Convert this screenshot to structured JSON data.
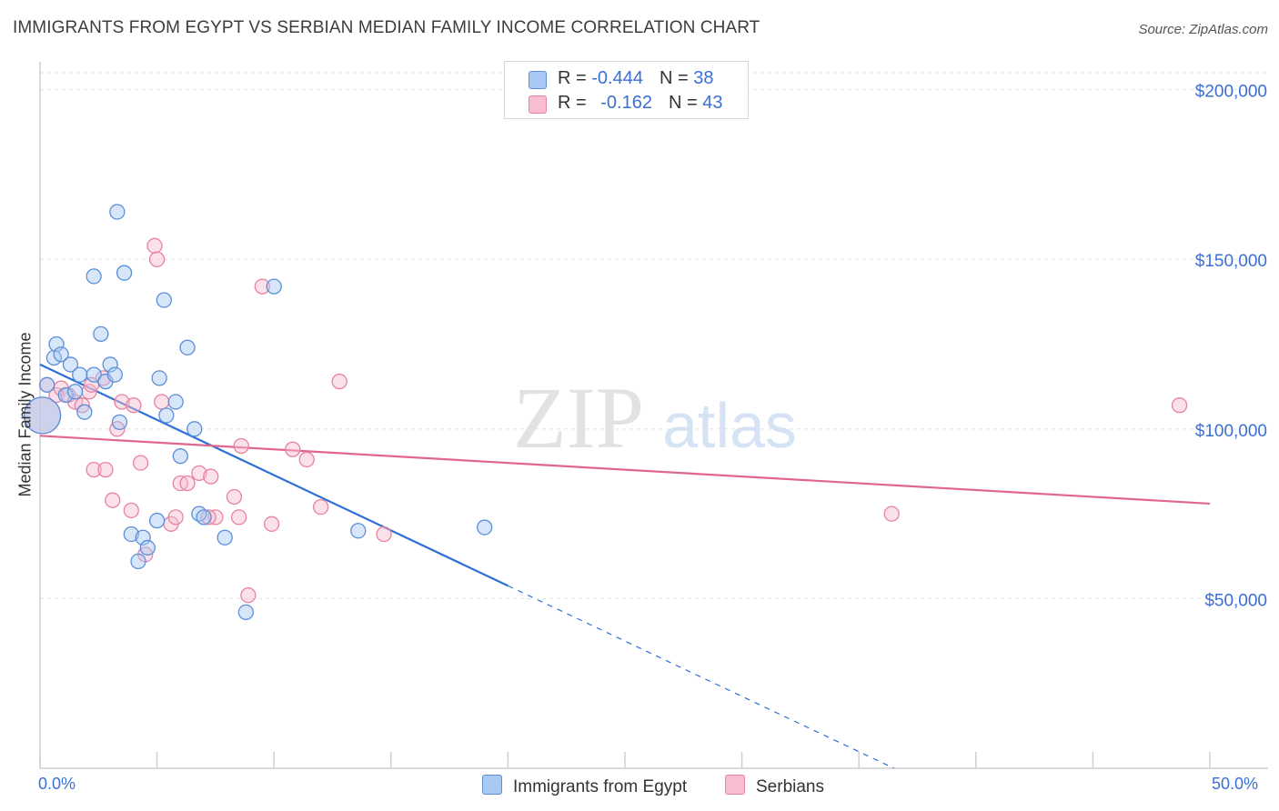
{
  "header": {
    "title": "IMMIGRANTS FROM EGYPT VS SERBIAN MEDIAN FAMILY INCOME CORRELATION CHART",
    "source": "Source: ZipAtlas.com"
  },
  "watermark": {
    "zip": "ZIP",
    "atlas": "atlas"
  },
  "colors": {
    "egypt_fill": "#a9c8f2",
    "egypt_stroke": "#5b8fd9",
    "egypt_line": "#2d6fd6",
    "serb_fill": "#f7bdd0",
    "serb_stroke": "#e8829f",
    "serb_line": "#e06690",
    "axis_text": "#3a6fd8"
  },
  "legend": {
    "rows": [
      {
        "r_label": "R = ",
        "r_value": "-0.444",
        "n_label": "N = ",
        "n_value": "38"
      },
      {
        "r_label": "R = ",
        "r_value": "-0.162",
        "n_label": "N = ",
        "n_value": "43"
      }
    ]
  },
  "axes": {
    "ylabel": "Median Family Income",
    "x_min_label": "0.0%",
    "x_max_label": "50.0%"
  },
  "bottom_legend": {
    "egypt": "Immigrants from Egypt",
    "serb": "Serbians"
  },
  "chart_data": {
    "type": "scatter",
    "title": "IMMIGRANTS FROM EGYPT VS SERBIAN MEDIAN FAMILY INCOME CORRELATION CHART",
    "xlabel": "",
    "ylabel": "Median Family Income",
    "xlim": [
      0,
      50
    ],
    "ylim": [
      0,
      205000
    ],
    "y_ticks": [
      {
        "value": 50000,
        "label": "$50,000"
      },
      {
        "value": 100000,
        "label": "$100,000"
      },
      {
        "value": 150000,
        "label": "$150,000"
      },
      {
        "value": 200000,
        "label": "$200,000"
      }
    ],
    "x_ticks": [
      0,
      5,
      10,
      15,
      20,
      25,
      30,
      35,
      40,
      45,
      50
    ],
    "series": [
      {
        "name": "Immigrants from Egypt",
        "r": -0.444,
        "n": 38,
        "trend": {
          "x0": 0,
          "y0": 119000,
          "x_solid_end": 20,
          "x1": 36.5,
          "y1": 0
        },
        "points": [
          {
            "x": 0.1,
            "y": 104000,
            "big": true
          },
          {
            "x": 0.3,
            "y": 113000
          },
          {
            "x": 0.6,
            "y": 121000
          },
          {
            "x": 0.7,
            "y": 125000
          },
          {
            "x": 0.9,
            "y": 122000
          },
          {
            "x": 1.1,
            "y": 110000
          },
          {
            "x": 1.3,
            "y": 119000
          },
          {
            "x": 1.5,
            "y": 111000
          },
          {
            "x": 1.7,
            "y": 116000
          },
          {
            "x": 1.9,
            "y": 105000
          },
          {
            "x": 2.3,
            "y": 116000
          },
          {
            "x": 2.3,
            "y": 145000
          },
          {
            "x": 2.6,
            "y": 128000
          },
          {
            "x": 2.8,
            "y": 114000
          },
          {
            "x": 3.0,
            "y": 119000
          },
          {
            "x": 3.2,
            "y": 116000
          },
          {
            "x": 3.3,
            "y": 164000
          },
          {
            "x": 3.4,
            "y": 102000
          },
          {
            "x": 3.6,
            "y": 146000
          },
          {
            "x": 3.9,
            "y": 69000
          },
          {
            "x": 4.2,
            "y": 61000
          },
          {
            "x": 4.4,
            "y": 68000
          },
          {
            "x": 4.6,
            "y": 65000
          },
          {
            "x": 5.0,
            "y": 73000
          },
          {
            "x": 5.1,
            "y": 115000
          },
          {
            "x": 5.3,
            "y": 138000
          },
          {
            "x": 5.4,
            "y": 104000
          },
          {
            "x": 5.8,
            "y": 108000
          },
          {
            "x": 6.0,
            "y": 92000
          },
          {
            "x": 6.3,
            "y": 124000
          },
          {
            "x": 6.6,
            "y": 100000
          },
          {
            "x": 6.8,
            "y": 75000
          },
          {
            "x": 7.0,
            "y": 74000
          },
          {
            "x": 7.9,
            "y": 68000
          },
          {
            "x": 8.8,
            "y": 46000
          },
          {
            "x": 10.0,
            "y": 142000
          },
          {
            "x": 13.6,
            "y": 70000
          },
          {
            "x": 19.0,
            "y": 71000
          }
        ]
      },
      {
        "name": "Serbians",
        "r": -0.162,
        "n": 43,
        "trend": {
          "x0": 0,
          "y0": 98000,
          "x1": 50,
          "y1": 78000
        },
        "points": [
          {
            "x": 0.1,
            "y": 104000,
            "big": true
          },
          {
            "x": 0.3,
            "y": 113000
          },
          {
            "x": 0.7,
            "y": 110000
          },
          {
            "x": 0.9,
            "y": 112000
          },
          {
            "x": 1.2,
            "y": 110000
          },
          {
            "x": 1.5,
            "y": 108000
          },
          {
            "x": 1.8,
            "y": 107000
          },
          {
            "x": 2.1,
            "y": 111000
          },
          {
            "x": 2.2,
            "y": 113000
          },
          {
            "x": 2.3,
            "y": 88000
          },
          {
            "x": 2.7,
            "y": 115000
          },
          {
            "x": 2.8,
            "y": 88000
          },
          {
            "x": 3.1,
            "y": 79000
          },
          {
            "x": 3.3,
            "y": 100000
          },
          {
            "x": 3.5,
            "y": 108000
          },
          {
            "x": 3.9,
            "y": 76000
          },
          {
            "x": 4.0,
            "y": 107000
          },
          {
            "x": 4.3,
            "y": 90000
          },
          {
            "x": 4.5,
            "y": 63000
          },
          {
            "x": 4.9,
            "y": 154000
          },
          {
            "x": 5.0,
            "y": 150000
          },
          {
            "x": 5.2,
            "y": 108000
          },
          {
            "x": 5.6,
            "y": 72000
          },
          {
            "x": 5.8,
            "y": 74000
          },
          {
            "x": 6.0,
            "y": 84000
          },
          {
            "x": 6.3,
            "y": 84000
          },
          {
            "x": 6.8,
            "y": 87000
          },
          {
            "x": 7.3,
            "y": 86000
          },
          {
            "x": 7.5,
            "y": 74000
          },
          {
            "x": 8.3,
            "y": 80000
          },
          {
            "x": 8.5,
            "y": 74000
          },
          {
            "x": 8.9,
            "y": 51000
          },
          {
            "x": 9.5,
            "y": 142000
          },
          {
            "x": 9.9,
            "y": 72000
          },
          {
            "x": 10.8,
            "y": 94000
          },
          {
            "x": 11.4,
            "y": 91000
          },
          {
            "x": 12.0,
            "y": 77000
          },
          {
            "x": 12.8,
            "y": 114000
          },
          {
            "x": 14.7,
            "y": 69000
          },
          {
            "x": 8.6,
            "y": 95000
          },
          {
            "x": 7.2,
            "y": 74000
          },
          {
            "x": 36.4,
            "y": 75000
          },
          {
            "x": 48.7,
            "y": 107000
          }
        ]
      }
    ]
  }
}
